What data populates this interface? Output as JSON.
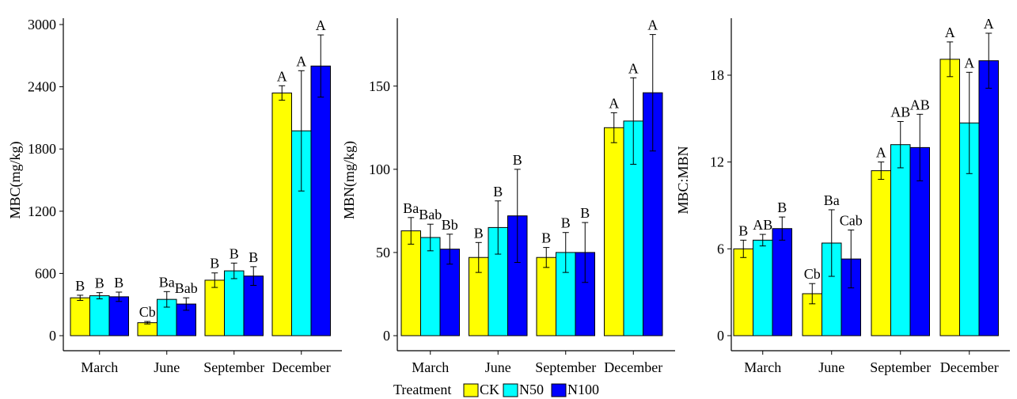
{
  "chart_data": [
    {
      "type": "bar",
      "ylabel": "MBC(mg/kg)",
      "xlabel": "",
      "ylim": [
        0,
        3000
      ],
      "yticks": [
        0,
        600,
        1200,
        1800,
        2400,
        3000
      ],
      "categories": [
        "March",
        "June",
        "September",
        "December"
      ],
      "series": [
        {
          "name": "CK",
          "values": [
            365,
            125,
            535,
            2340
          ],
          "errors": [
            25,
            12,
            70,
            70
          ]
        },
        {
          "name": "N50",
          "values": [
            385,
            350,
            625,
            1975
          ],
          "errors": [
            30,
            75,
            75,
            580
          ]
        },
        {
          "name": "N100",
          "values": [
            375,
            305,
            575,
            2600
          ],
          "errors": [
            45,
            60,
            90,
            300
          ]
        }
      ],
      "labels": [
        [
          "B",
          "B",
          "B"
        ],
        [
          "Cb",
          "Ba",
          "Bab"
        ],
        [
          "B",
          "B",
          "B"
        ],
        [
          "A",
          "A",
          "A"
        ]
      ]
    },
    {
      "type": "bar",
      "ylabel": "MBN(mg/kg)",
      "xlabel": "",
      "ylim": [
        0,
        187
      ],
      "yticks": [
        0,
        50,
        100,
        150
      ],
      "categories": [
        "March",
        "June",
        "September",
        "December"
      ],
      "series": [
        {
          "name": "CK",
          "values": [
            63,
            47,
            47,
            125
          ],
          "errors": [
            8,
            9,
            6,
            9
          ]
        },
        {
          "name": "N50",
          "values": [
            59,
            65,
            50,
            129
          ],
          "errors": [
            8,
            16,
            12,
            26
          ]
        },
        {
          "name": "N100",
          "values": [
            52,
            72,
            50,
            146
          ],
          "errors": [
            9,
            28,
            18,
            35
          ]
        }
      ],
      "labels": [
        [
          "Ba",
          "Bab",
          "Bb"
        ],
        [
          "B",
          "B",
          "B"
        ],
        [
          "B",
          "B",
          "B"
        ],
        [
          "A",
          "A",
          "A"
        ]
      ]
    },
    {
      "type": "bar",
      "ylabel": "MBC:MBN",
      "xlabel": "",
      "ylim": [
        0,
        21.5
      ],
      "yticks": [
        0,
        6,
        12,
        18
      ],
      "categories": [
        "March",
        "June",
        "September",
        "December"
      ],
      "series": [
        {
          "name": "CK",
          "values": [
            6.0,
            2.9,
            11.4,
            19.1
          ],
          "errors": [
            0.6,
            0.7,
            0.6,
            1.2
          ]
        },
        {
          "name": "N50",
          "values": [
            6.6,
            6.4,
            13.2,
            14.7
          ],
          "errors": [
            0.4,
            2.3,
            1.6,
            3.5
          ]
        },
        {
          "name": "N100",
          "values": [
            7.4,
            5.3,
            13.0,
            19.0
          ],
          "errors": [
            0.8,
            2.0,
            2.3,
            1.9
          ]
        }
      ],
      "labels": [
        [
          "B",
          "AB",
          "B"
        ],
        [
          "Cb",
          "Ba",
          "Cab"
        ],
        [
          "A",
          "AB",
          "AB"
        ],
        [
          "A",
          "A",
          "A"
        ]
      ]
    }
  ],
  "legend": {
    "title": "Treatment",
    "items": [
      {
        "label": "CK",
        "color": "#ffff00"
      },
      {
        "label": "N50",
        "color": "#00ffff"
      },
      {
        "label": "N100",
        "color": "#0000ff"
      }
    ]
  },
  "series_colors": [
    "#ffff00",
    "#00ffff",
    "#0000ff"
  ]
}
